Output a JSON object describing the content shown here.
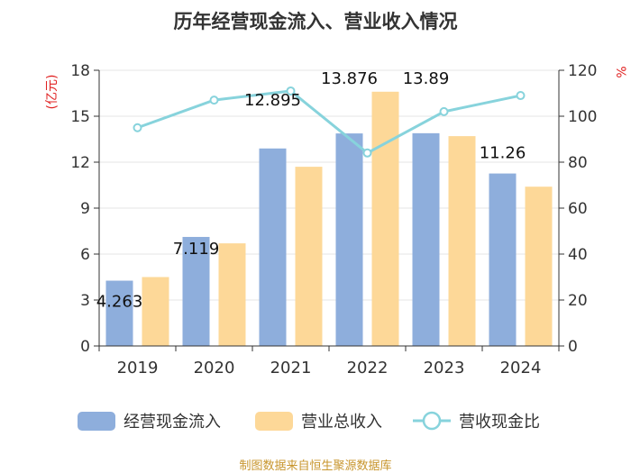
{
  "chart_data": {
    "type": "bar",
    "title": "历年经营现金流入、营业收入情况",
    "categories": [
      "2019",
      "2020",
      "2021",
      "2022",
      "2023",
      "2024"
    ],
    "series": [
      {
        "name": "经营现金流入",
        "kind": "bar",
        "axis": "left",
        "values": [
          4.263,
          7.119,
          12.895,
          13.876,
          13.89,
          11.26
        ],
        "labels": [
          "4.263",
          "7.119",
          "12.895",
          "13.876",
          "13.89",
          "11.26"
        ]
      },
      {
        "name": "营业总收入",
        "kind": "bar",
        "axis": "left",
        "values": [
          4.5,
          6.7,
          11.7,
          16.6,
          13.7,
          10.4
        ]
      },
      {
        "name": "营收现金比",
        "kind": "line",
        "axis": "right",
        "values": [
          95,
          107,
          111,
          84,
          102,
          109
        ]
      }
    ],
    "left_axis": {
      "unit": "(亿元)",
      "min": 0,
      "max": 18,
      "ticks": [
        0,
        3,
        6,
        9,
        12,
        15,
        18
      ]
    },
    "right_axis": {
      "unit": "%",
      "min": 0,
      "max": 120,
      "ticks": [
        0,
        20,
        40,
        60,
        80,
        100,
        120
      ]
    },
    "grid": true,
    "legend_position": "bottom",
    "colors": {
      "bar1": "#8eaedc",
      "bar2": "#fdd898",
      "line": "#87d3dc",
      "unit": "#e02020",
      "footer": "#c8962e"
    }
  },
  "footer": "制图数据来自恒生聚源数据库"
}
